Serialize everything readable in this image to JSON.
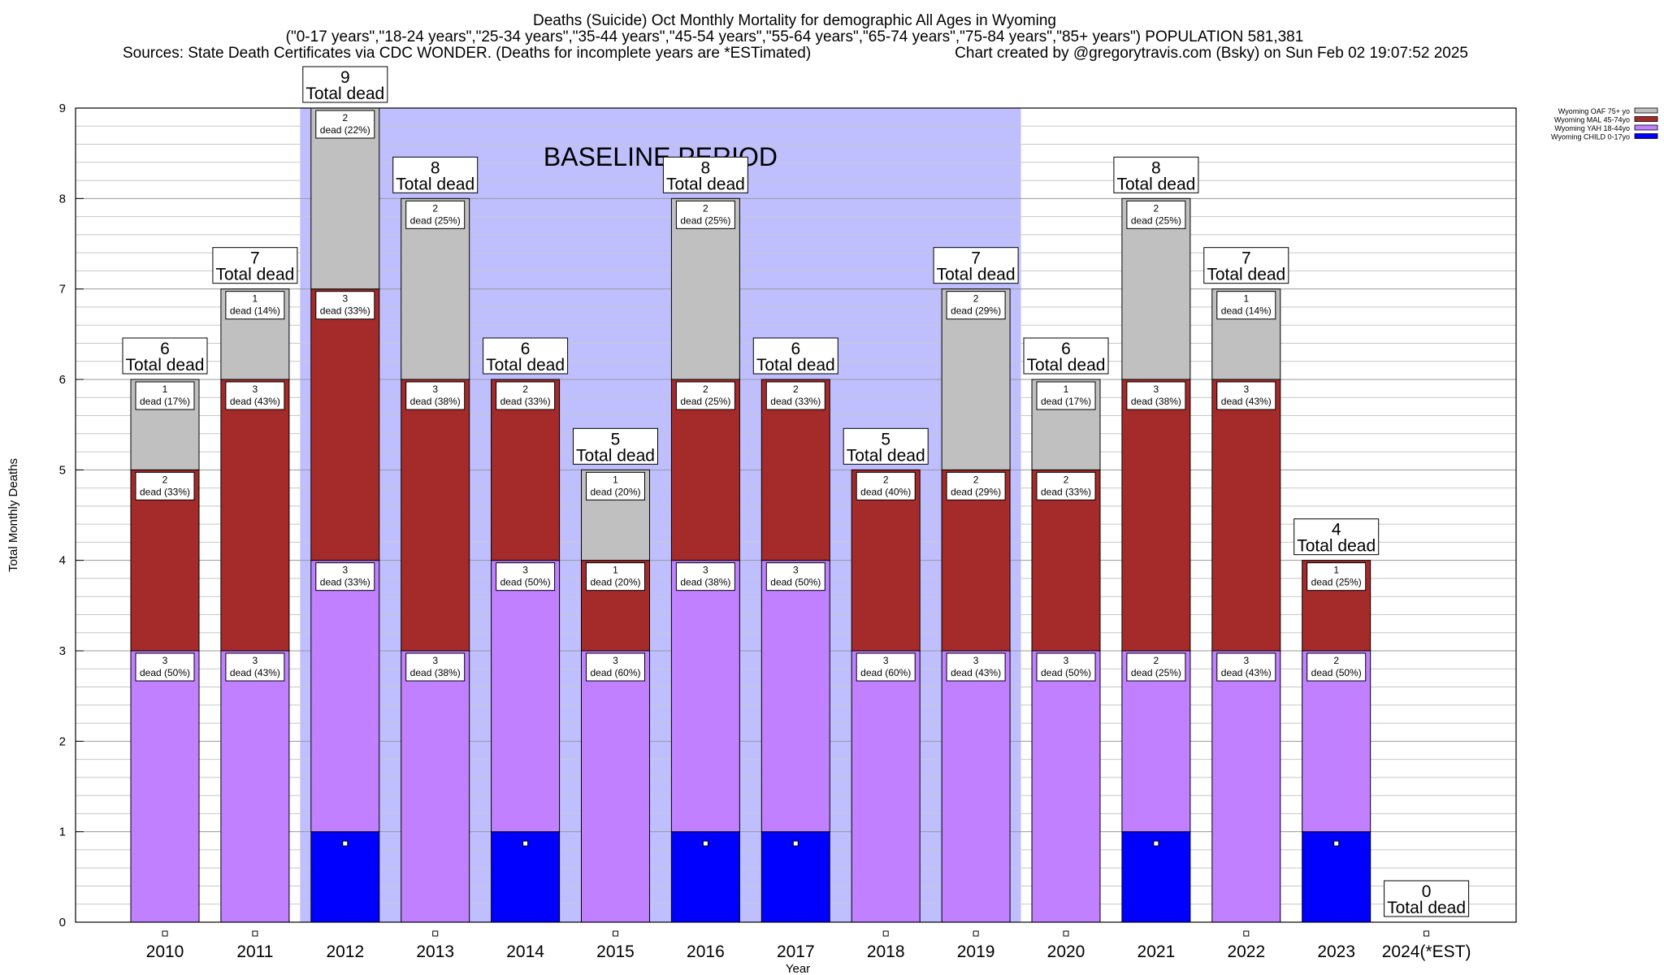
{
  "title": {
    "line1": "Deaths (Suicide) Oct Monthly Mortality for demographic All Ages in Wyoming",
    "line2": "(\"0-17 years\",\"18-24 years\",\"25-34 years\",\"35-44 years\",\"45-54 years\",\"55-64 years\",\"65-74 years\",\"75-84 years\",\"85+ years\") POPULATION 581,381",
    "line3_left": "Sources: State Death Certificates via CDC WONDER. (Deaths for incomplete years are *ESTimated)",
    "line3_right": "Chart created by @gregorytravis.com (Bsky) on Sun Feb 02 19:07:52 2025"
  },
  "baseline_label": "BASELINE PERIOD",
  "total_label": "Total dead",
  "segment_label_word": "dead",
  "chart_data": {
    "type": "bar",
    "stacked": true,
    "xlabel": "Year",
    "ylabel": "Total Monthly Deaths",
    "ylim": [
      0,
      9
    ],
    "yticks": [
      "0",
      "1",
      "2",
      "3",
      "4",
      "5",
      "6",
      "7",
      "8",
      "9"
    ],
    "grid": true,
    "legend_position": "top-right",
    "baseline_period": [
      "2012",
      "2019"
    ],
    "categories": [
      "2010",
      "2011",
      "2012",
      "2013",
      "2014",
      "2015",
      "2016",
      "2017",
      "2018",
      "2019",
      "2020",
      "2021",
      "2022",
      "2023",
      "2024(*EST)"
    ],
    "totals": [
      6,
      7,
      9,
      8,
      6,
      5,
      8,
      6,
      5,
      7,
      6,
      8,
      7,
      4,
      0
    ],
    "series": [
      {
        "name": "Wyoming CHILD 0-17yo",
        "color": "#0000ff",
        "values": [
          0,
          0,
          1,
          0,
          1,
          0,
          1,
          1,
          0,
          0,
          0,
          1,
          0,
          1,
          0
        ],
        "percents": [
          "",
          "",
          "",
          "",
          "",
          "",
          "",
          "",
          "",
          "",
          "",
          "",
          "",
          "",
          ""
        ]
      },
      {
        "name": "Wyoming YAH 18-44yo",
        "color": "#c080ff",
        "values": [
          3,
          3,
          3,
          3,
          3,
          3,
          3,
          3,
          3,
          3,
          3,
          2,
          3,
          2,
          0
        ],
        "percents": [
          "50%",
          "43%",
          "33%",
          "38%",
          "50%",
          "60%",
          "38%",
          "50%",
          "60%",
          "43%",
          "50%",
          "25%",
          "43%",
          "50%",
          ""
        ]
      },
      {
        "name": "Wyoming MAL 45-74yo",
        "color": "#a52a2a",
        "values": [
          2,
          3,
          3,
          3,
          2,
          1,
          2,
          2,
          2,
          2,
          2,
          3,
          3,
          1,
          0
        ],
        "percents": [
          "33%",
          "43%",
          "33%",
          "38%",
          "33%",
          "20%",
          "25%",
          "33%",
          "40%",
          "29%",
          "33%",
          "38%",
          "43%",
          "25%",
          ""
        ]
      },
      {
        "name": "Wyoming OAF 75+ yo",
        "color": "#c0c0c0",
        "values": [
          1,
          1,
          2,
          2,
          0,
          1,
          2,
          0,
          0,
          2,
          1,
          2,
          1,
          0,
          0
        ],
        "percents": [
          "17%",
          "14%",
          "22%",
          "25%",
          "",
          "20%",
          "25%",
          "",
          "",
          "29%",
          "17%",
          "25%",
          "14%",
          "",
          ""
        ]
      }
    ]
  }
}
